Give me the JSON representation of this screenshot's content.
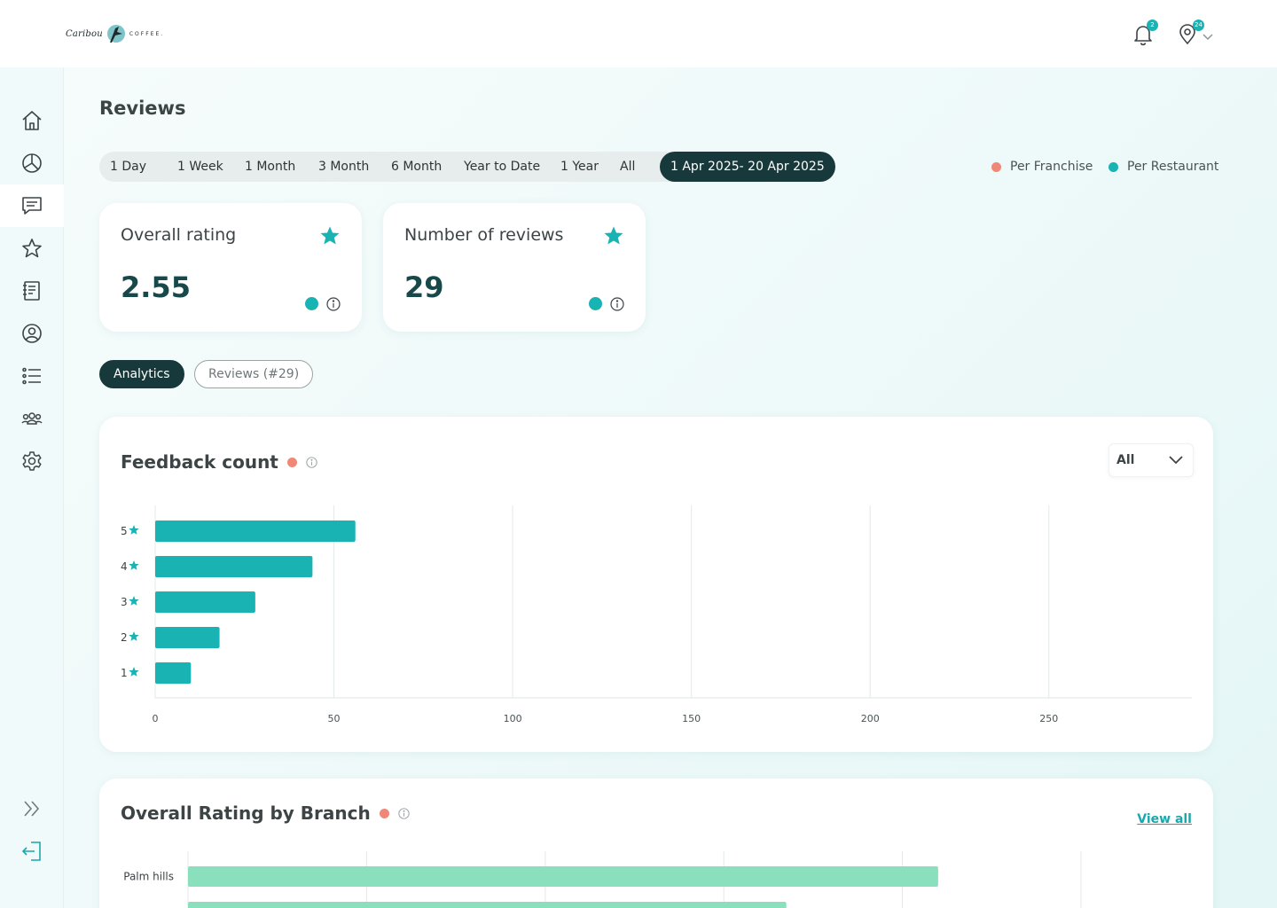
{
  "brand": {
    "logo_script": "Caribou",
    "logo_word": "COFFEE."
  },
  "header": {
    "notifications_count": "2",
    "locations_count": "24"
  },
  "sidebar": {
    "items": [
      {
        "icon": "home-icon"
      },
      {
        "icon": "pie-chart-icon"
      },
      {
        "icon": "chat-icon",
        "active": true
      },
      {
        "icon": "star-icon"
      },
      {
        "icon": "notebook-icon"
      },
      {
        "icon": "user-circle-icon"
      },
      {
        "icon": "list-icon"
      },
      {
        "icon": "team-icon"
      },
      {
        "icon": "gear-icon"
      }
    ],
    "bottom": [
      {
        "icon": "expand-icon"
      },
      {
        "icon": "logout-icon"
      }
    ]
  },
  "page": {
    "title": "Reviews"
  },
  "time_ranges": {
    "options": [
      "1 Day",
      "1 Week",
      "1 Month",
      "3 Month",
      "6 Month",
      "Year to Date",
      "1 Year",
      "All"
    ],
    "selected": "1 Apr 2025- 20 Apr 2025"
  },
  "legend": {
    "franchise": {
      "label": "Per Franchise",
      "color": "#f08878"
    },
    "restaurant": {
      "label": "Per Restaurant",
      "color": "#19b3b4"
    }
  },
  "kpis": [
    {
      "title": "Overall rating",
      "value": "2.55"
    },
    {
      "title": "Number of reviews",
      "value": "29"
    }
  ],
  "tabs": {
    "analytics": "Analytics",
    "reviews": "Reviews (#29)"
  },
  "feedback_panel": {
    "title": "Feedback count",
    "filter_value": "All"
  },
  "branch_panel": {
    "title": "Overall Rating by Branch",
    "view_all": "View all"
  },
  "chart_data": [
    {
      "type": "bar",
      "orientation": "horizontal",
      "categories": [
        "5",
        "4",
        "3",
        "2",
        "1"
      ],
      "values": [
        56,
        44,
        28,
        18,
        10
      ],
      "xlim": [
        0,
        290
      ],
      "xticks": [
        0,
        50,
        100,
        150,
        200,
        250
      ],
      "color": "#19b3b4",
      "grid": true
    },
    {
      "type": "bar",
      "orientation": "horizontal",
      "categories": [
        "Palm hills",
        ""
      ],
      "values": [
        4.2,
        3.35
      ],
      "xlim": [
        0,
        5
      ],
      "xticks": [
        0,
        1,
        2,
        3,
        4,
        5
      ],
      "color": "#8adfbd",
      "grid": true
    }
  ]
}
